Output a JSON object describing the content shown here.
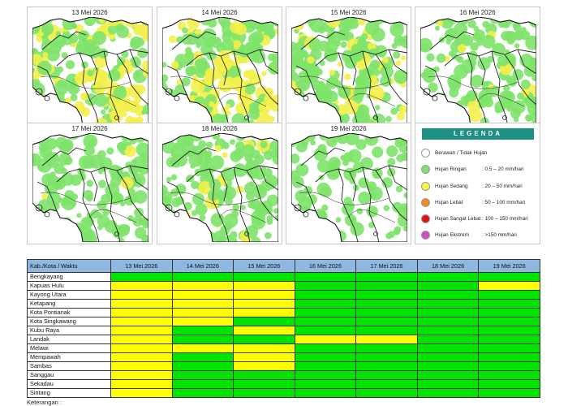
{
  "legend": {
    "title": "LEGENDA",
    "items": [
      {
        "label": "Berawan / Tidak Hujan",
        "range": "",
        "color": "#ffffff"
      },
      {
        "label": "Hujan Ringan",
        "range": ": 0.5 – 20 mm/hari",
        "color": "#7ee36a"
      },
      {
        "label": "Hujan Sedang",
        "range": ": 20 – 50 mm/hari",
        "color": "#f5f542"
      },
      {
        "label": "Hujan Lebat",
        "range": ": 50 – 100 mm/hari",
        "color": "#f28c1e"
      },
      {
        "label": "Hujan Sangat Lebat",
        "range": ": 100 – 150 mm/hari",
        "color": "#e01010"
      },
      {
        "label": "Hujan Ekstrem",
        "range": ": >150 mm/hari",
        "color": "#d14ec8"
      }
    ]
  },
  "maps": [
    {
      "date": "13 Mei 2026",
      "coverage": "high",
      "yellow": "high"
    },
    {
      "date": "14 Mei 2026",
      "coverage": "high",
      "yellow": "high"
    },
    {
      "date": "15 Mei 2026",
      "coverage": "high",
      "yellow": "medium"
    },
    {
      "date": "16 Mei 2026",
      "coverage": "medium",
      "yellow": "low"
    },
    {
      "date": "17 Mei 2026",
      "coverage": "medium",
      "yellow": "low"
    },
    {
      "date": "18 Mei 2026",
      "coverage": "medium",
      "yellow": "low"
    },
    {
      "date": "19 Mei 2026",
      "coverage": "low",
      "yellow": "none"
    }
  ],
  "table": {
    "header_label": "Kab./Kota / Waktu",
    "dates": [
      "13 Mei 2026",
      "14 Mei 2026",
      "15 Mei 2026",
      "16 Mei 2026",
      "17 Mei 2026",
      "18 Mei 2026",
      "19 Mei 2026"
    ],
    "colors": {
      "G": "#00e400",
      "Y": "#ffff00"
    },
    "rows": [
      {
        "name": "Bengkayang",
        "cells": [
          "G",
          "G",
          "G",
          "G",
          "G",
          "G",
          "G"
        ]
      },
      {
        "name": "Kapuas Hulu",
        "cells": [
          "Y",
          "Y",
          "Y",
          "G",
          "G",
          "G",
          "Y"
        ]
      },
      {
        "name": "Kayong Utara",
        "cells": [
          "Y",
          "Y",
          "Y",
          "G",
          "G",
          "G",
          "G"
        ]
      },
      {
        "name": "Ketapang",
        "cells": [
          "Y",
          "Y",
          "Y",
          "G",
          "G",
          "G",
          "G"
        ]
      },
      {
        "name": "Kota Pontianak",
        "cells": [
          "Y",
          "Y",
          "Y",
          "G",
          "G",
          "G",
          "G"
        ]
      },
      {
        "name": "Kota Singkawang",
        "cells": [
          "Y",
          "Y",
          "G",
          "G",
          "G",
          "G",
          "G"
        ]
      },
      {
        "name": "Kubu Raya",
        "cells": [
          "Y",
          "G",
          "Y",
          "G",
          "G",
          "G",
          "G"
        ]
      },
      {
        "name": "Landak",
        "cells": [
          "Y",
          "G",
          "G",
          "Y",
          "Y",
          "G",
          "G"
        ]
      },
      {
        "name": "Melawi",
        "cells": [
          "Y",
          "Y",
          "Y",
          "G",
          "G",
          "G",
          "G"
        ]
      },
      {
        "name": "Mempawah",
        "cells": [
          "Y",
          "G",
          "Y",
          "G",
          "G",
          "G",
          "G"
        ]
      },
      {
        "name": "Sambas",
        "cells": [
          "Y",
          "G",
          "Y",
          "G",
          "G",
          "G",
          "G"
        ]
      },
      {
        "name": "Sanggau",
        "cells": [
          "Y",
          "G",
          "G",
          "G",
          "G",
          "G",
          "G"
        ]
      },
      {
        "name": "Sekadau",
        "cells": [
          "Y",
          "G",
          "G",
          "G",
          "G",
          "G",
          "G"
        ]
      },
      {
        "name": "Sintang",
        "cells": [
          "Y",
          "G",
          "G",
          "G",
          "G",
          "G",
          "G"
        ]
      }
    ]
  },
  "footer": {
    "note": "Keterangan :"
  }
}
